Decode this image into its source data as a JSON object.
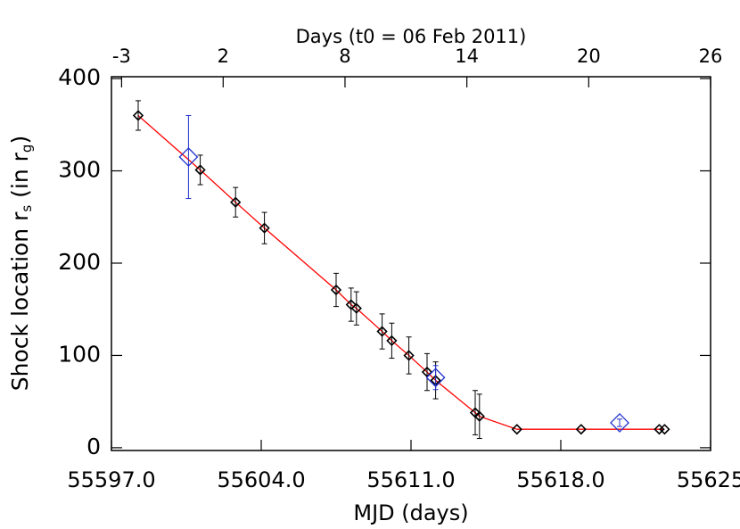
{
  "chart_data": {
    "type": "scatter",
    "xlabel": "MJD (days)",
    "x2label": "Days (t0 = 06 Feb 2011)",
    "ylabel": [
      "Shock location r",
      "s",
      " (in r",
      "g",
      ")"
    ],
    "xlim": [
      55597,
      55625
    ],
    "xticks": [
      {
        "value": 55597,
        "label": "55597.0"
      },
      {
        "value": 55604,
        "label": "55604.0"
      },
      {
        "value": 55611,
        "label": "55611.0"
      },
      {
        "value": 55618,
        "label": "55618.0"
      },
      55625
    ],
    "x2lim": [
      -3.5,
      26
    ],
    "x2ticks": [
      -3,
      2,
      8,
      14,
      20,
      26
    ],
    "ylim": [
      -3,
      402
    ],
    "yticks": [
      0,
      100,
      200,
      300,
      400
    ],
    "series": [
      {
        "color": "#000000",
        "line": true,
        "line_color": "#ff0000",
        "x": [
          55598.25,
          55601.15,
          55602.8,
          55604.15,
          55607.5,
          55608.2,
          55608.45,
          55609.65,
          55610.1,
          55610.9,
          55611.75,
          55612.15,
          55614.0,
          55614.2,
          55615.95,
          55618.95,
          55622.6,
          55622.85
        ],
        "values": [
          360,
          301,
          266,
          238,
          171,
          155,
          151,
          126,
          116,
          100,
          82,
          73,
          38,
          34,
          20,
          20,
          20,
          20
        ],
        "errors": [
          16,
          16,
          16,
          17,
          18,
          18,
          18,
          19,
          19,
          20,
          20,
          20,
          24,
          24,
          0,
          0,
          0,
          0
        ]
      },
      {
        "color": "#2233cc",
        "line": false,
        "x": [
          55600.6,
          55612.15,
          55620.75
        ],
        "values": [
          315,
          76,
          27
        ],
        "errors": [
          45,
          13,
          4
        ]
      }
    ]
  }
}
